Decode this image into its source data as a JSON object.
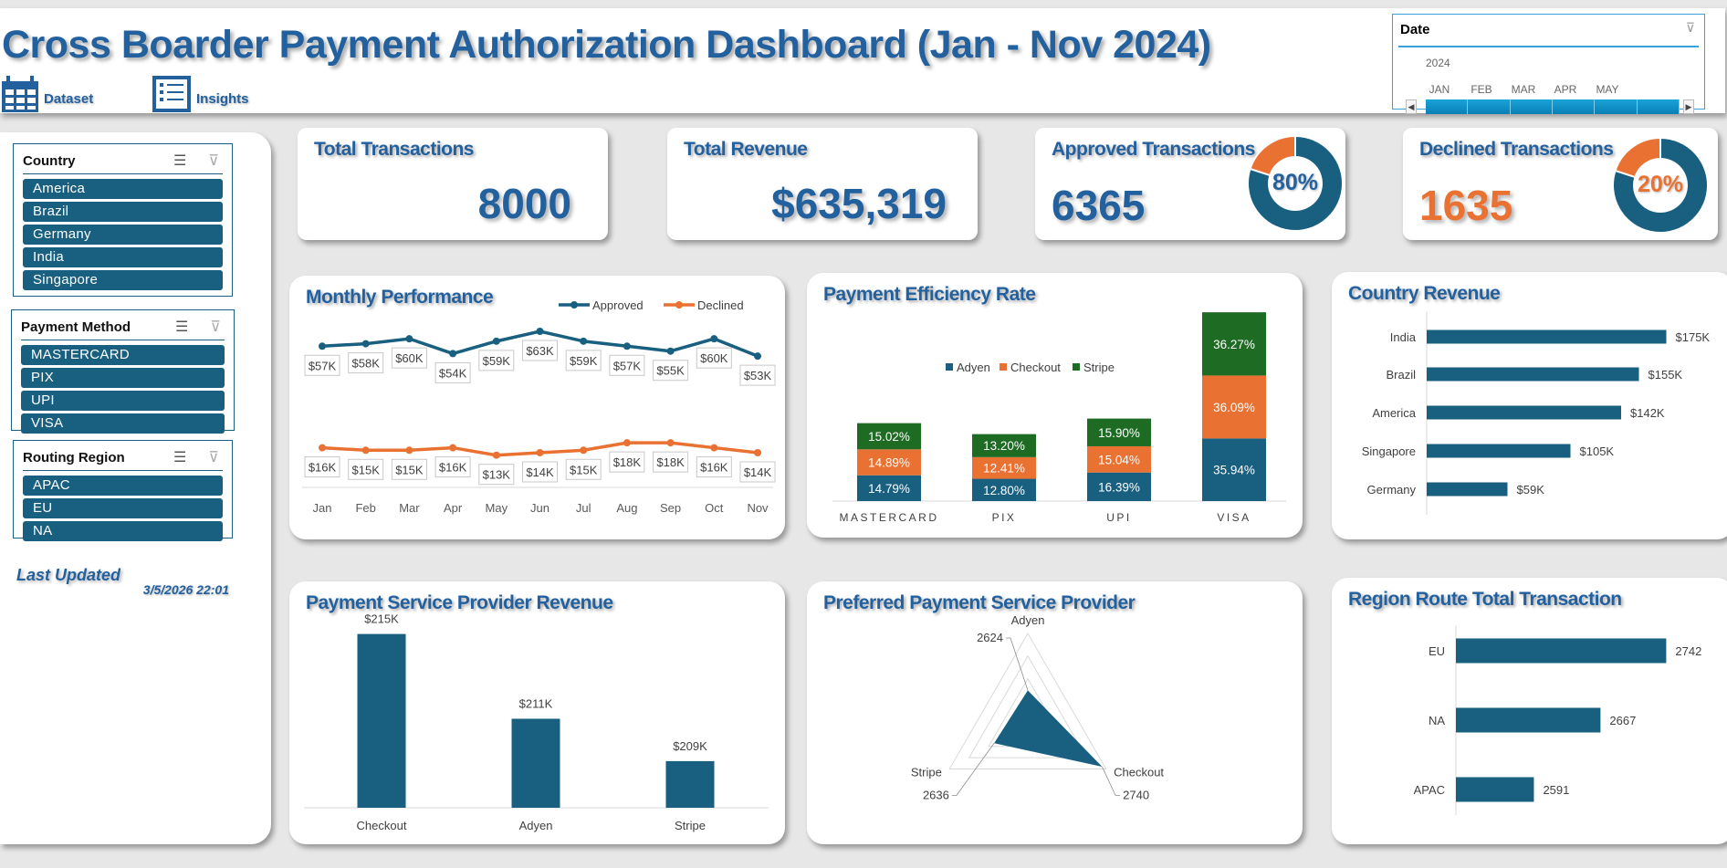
{
  "header": {
    "title": "Cross Boarder Payment Authorization Dashboard (Jan - Nov 2024)",
    "dataset_label": "Dataset",
    "insights_label": "Insights"
  },
  "date_slicer": {
    "title": "Date",
    "year": "2024",
    "months": [
      "JAN",
      "FEB",
      "MAR",
      "APR",
      "MAY"
    ],
    "icon": "clear-filter-icon"
  },
  "slicers": {
    "country": {
      "title": "Country",
      "items": [
        "America",
        "Brazil",
        "Germany",
        "India",
        "Singapore"
      ]
    },
    "payment_method": {
      "title": "Payment Method",
      "items": [
        "MASTERCARD",
        "PIX",
        "UPI",
        "VISA"
      ]
    },
    "routing_region": {
      "title": "Routing Region",
      "items": [
        "APAC",
        "EU",
        "NA"
      ]
    }
  },
  "last_updated": {
    "label": "Last Updated",
    "value": "3/5/2026 22:01"
  },
  "kpis": {
    "total_transactions": {
      "title": "Total Transactions",
      "value": "8000"
    },
    "total_revenue": {
      "title": "Total Revenue",
      "value": "$635,319"
    },
    "approved": {
      "title": "Approved Transactions",
      "value": "6365",
      "pct": "80%",
      "share": 0.8
    },
    "declined": {
      "title": "Declined Transactions",
      "value": "1635",
      "pct": "20%",
      "share": 0.2
    }
  },
  "colors": {
    "primary": "#185f80",
    "orange": "#e97132",
    "green": "#1e6b24",
    "title_blue": "#23609e"
  },
  "chart_data": [
    {
      "type": "line",
      "title": "Monthly Performance",
      "categories": [
        "Jan",
        "Feb",
        "Mar",
        "Apr",
        "May",
        "Jun",
        "Jul",
        "Aug",
        "Sep",
        "Oct",
        "Nov"
      ],
      "ylim": [
        0,
        70
      ],
      "legend": "top-right",
      "series": [
        {
          "name": "Approved",
          "values": [
            57,
            58,
            60,
            54,
            59,
            63,
            59,
            57,
            55,
            60,
            53
          ],
          "labels": [
            "$57K",
            "$58K",
            "$60K",
            "$54K",
            "$59K",
            "$63K",
            "$59K",
            "$57K",
            "$55K",
            "$60K",
            "$53K"
          ]
        },
        {
          "name": "Declined",
          "values": [
            16,
            15,
            15,
            16,
            13,
            14,
            15,
            18,
            18,
            16,
            14
          ],
          "labels": [
            "$16K",
            "$15K",
            "$15K",
            "$16K",
            "$13K",
            "$14K",
            "$15K",
            "$18K",
            "$18K",
            "$16K",
            "$14K"
          ]
        }
      ]
    },
    {
      "type": "bar",
      "stacked": true,
      "title": "Payment Efficiency Rate",
      "categories": [
        "MASTERCARD",
        "PIX",
        "UPI",
        "VISA"
      ],
      "legend": "top-center",
      "series": [
        {
          "name": "Adyen",
          "values": [
            14.79,
            12.8,
            16.39,
            35.94
          ],
          "labels": [
            "14.79%",
            "12.80%",
            "16.39%",
            "35.94%"
          ]
        },
        {
          "name": "Checkout",
          "values": [
            14.89,
            12.41,
            15.04,
            36.09
          ],
          "labels": [
            "14.89%",
            "12.41%",
            "15.04%",
            "36.09%"
          ]
        },
        {
          "name": "Stripe",
          "values": [
            15.02,
            13.2,
            15.9,
            36.27
          ],
          "labels": [
            "15.02%",
            "13.20%",
            "15.90%",
            "36.27%"
          ]
        }
      ]
    },
    {
      "type": "bar",
      "orientation": "horizontal",
      "title": "Country Revenue",
      "categories": [
        "India",
        "Brazil",
        "America",
        "Singapore",
        "Germany"
      ],
      "values": [
        175,
        155,
        142,
        105,
        59
      ],
      "labels": [
        "$175K",
        "$155K",
        "$142K",
        "$105K",
        "$59K"
      ],
      "xlim": [
        0,
        200
      ]
    },
    {
      "type": "bar",
      "title": "Payment Service Provider  Revenue",
      "categories": [
        "Checkout",
        "Adyen",
        "Stripe"
      ],
      "values": [
        215,
        211,
        209
      ],
      "labels": [
        "$215K",
        "$211K",
        "$209K"
      ],
      "ylim": [
        206.8,
        215.5
      ]
    },
    {
      "type": "radar",
      "title": "Preferred Payment Service Provider",
      "categories": [
        "Adyen",
        "Checkout",
        "Stripe"
      ],
      "values": [
        2624,
        2740,
        2636
      ],
      "labels": [
        "2624",
        "2740",
        "2636"
      ],
      "rlim": [
        2550,
        2750
      ]
    },
    {
      "type": "bar",
      "orientation": "horizontal",
      "title": "Region Route Total Transaction",
      "categories": [
        "EU",
        "NA",
        "APAC"
      ],
      "values": [
        2742,
        2667,
        2591
      ],
      "labels": [
        "2742",
        "2667",
        "2591"
      ],
      "xlim": [
        2502,
        2800
      ]
    }
  ]
}
